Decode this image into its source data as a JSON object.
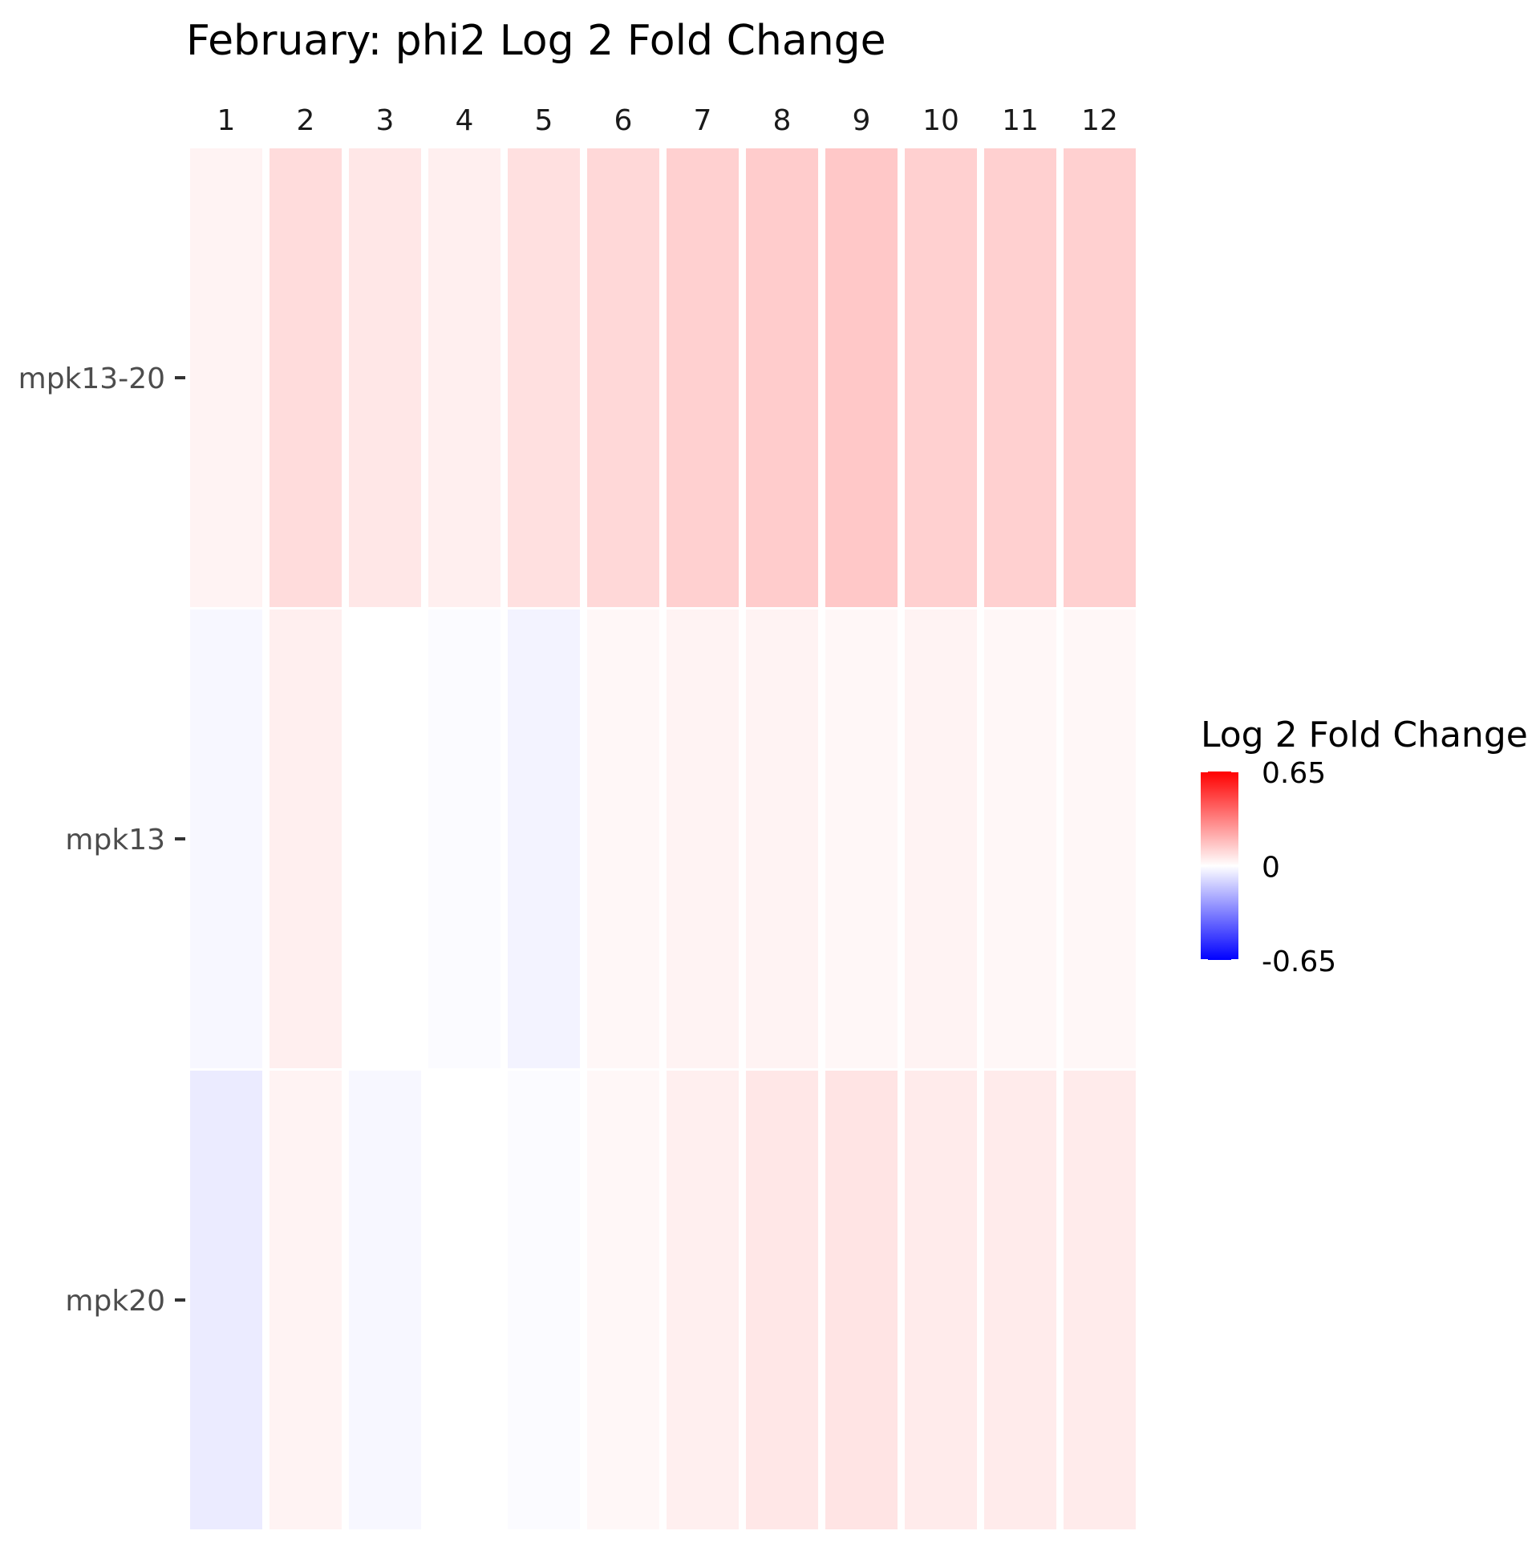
{
  "chart_data": {
    "type": "heatmap",
    "title": "February: phi2 Log 2 Fold Change",
    "columns": [
      "1",
      "2",
      "3",
      "4",
      "5",
      "6",
      "7",
      "8",
      "9",
      "10",
      "11",
      "12"
    ],
    "rows": [
      "mpk13-20",
      "mpk13",
      "mpk20"
    ],
    "values": [
      [
        0.03,
        0.09,
        0.06,
        0.04,
        0.08,
        0.1,
        0.12,
        0.13,
        0.14,
        0.12,
        0.12,
        0.12
      ],
      [
        -0.02,
        0.04,
        0.0,
        -0.01,
        -0.03,
        0.02,
        0.03,
        0.03,
        0.02,
        0.03,
        0.02,
        0.02
      ],
      [
        -0.05,
        0.03,
        -0.02,
        0.0,
        -0.01,
        0.02,
        0.04,
        0.06,
        0.07,
        0.05,
        0.05,
        0.05
      ]
    ],
    "legend": {
      "title": "Log 2 Fold Change",
      "tick_labels": [
        "0.65",
        "0",
        "-0.65"
      ],
      "range": [
        -0.65,
        0.65
      ],
      "colors": {
        "low": "#0000ff",
        "mid": "#ffffff",
        "high": "#ff0000"
      },
      "position": "right"
    },
    "grid": false
  }
}
